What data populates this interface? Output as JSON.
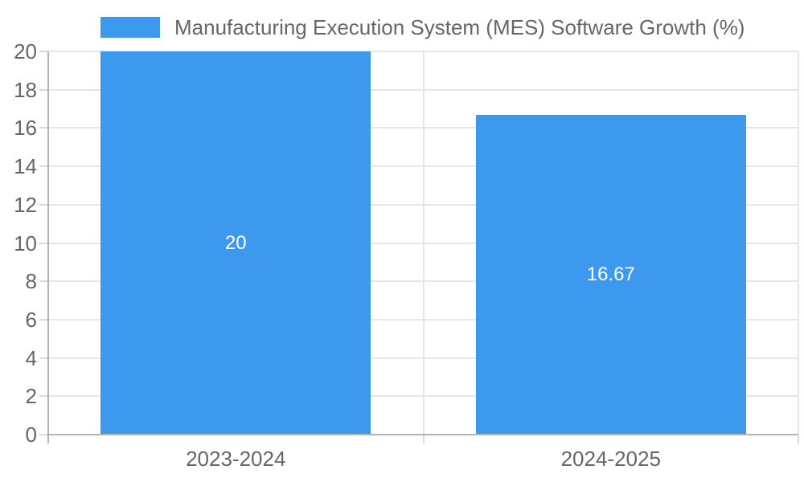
{
  "chart_data": {
    "type": "bar",
    "title": "Manufacturing Execution System (MES) Software Growth (%)",
    "legend": {
      "label": "Manufacturing Execution System (MES) Software Growth (%)",
      "position": "top"
    },
    "categories": [
      "2023-2024",
      "2024-2025"
    ],
    "series": [
      {
        "name": "Manufacturing Execution System (MES) Software Growth (%)",
        "values": [
          20,
          16.67
        ],
        "value_labels": [
          "20",
          "16.67"
        ],
        "color": "#3c99ee"
      }
    ],
    "xlabel": "",
    "ylabel": "",
    "ylim": [
      0,
      20
    ],
    "ytick_step": 2,
    "ytick_labels": [
      "0",
      "2",
      "4",
      "6",
      "8",
      "10",
      "12",
      "14",
      "16",
      "18",
      "20"
    ],
    "grid": true,
    "colors": {
      "bar": "#3c99ee",
      "axis_text": "#666666",
      "bar_label_text": "#ffffff",
      "gridline": "#e6e6e6",
      "axis_line": "#b3b3b3",
      "tick_mark": "#d9d9d9",
      "background": "#ffffff"
    }
  }
}
